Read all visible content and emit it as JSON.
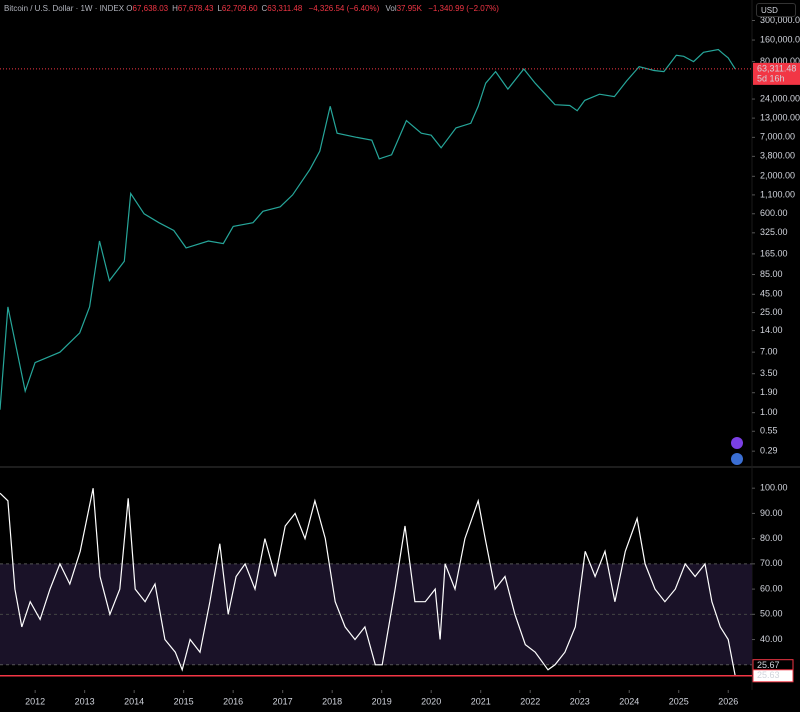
{
  "header": {
    "symbol": "Bitcoin / U.S. Dollar · 1W · INDEX",
    "ohlc": [
      {
        "key": "O",
        "value": "67,638.03"
      },
      {
        "key": "H",
        "value": "67,678.43"
      },
      {
        "key": "L",
        "value": "62,709.60"
      },
      {
        "key": "C",
        "value": "63,311.48"
      }
    ],
    "change": "−4,326.54 (−6.40%)",
    "volume_key": "Vol",
    "volume": "37.95K",
    "volume_change": "−1,340.99 (−2.07%)",
    "currency": "USD"
  },
  "chart_data": [
    {
      "type": "line",
      "log_scale": true,
      "color": "#26a69a",
      "x": [
        2011.29,
        2011.45,
        2011.8,
        2012.0,
        2012.5,
        2012.9,
        2013.1,
        2013.3,
        2013.5,
        2013.8,
        2013.93,
        2014.2,
        2014.5,
        2014.8,
        2015.05,
        2015.5,
        2015.8,
        2016.0,
        2016.4,
        2016.6,
        2016.95,
        2017.2,
        2017.55,
        2017.75,
        2017.96,
        2018.1,
        2018.5,
        2018.8,
        2018.95,
        2019.2,
        2019.5,
        2019.8,
        2020.0,
        2020.2,
        2020.5,
        2020.8,
        2020.95,
        2021.1,
        2021.3,
        2021.55,
        2021.87,
        2022.1,
        2022.5,
        2022.8,
        2022.95,
        2023.1,
        2023.4,
        2023.7,
        2023.95,
        2024.2,
        2024.5,
        2024.7,
        2024.95,
        2025.1,
        2025.3,
        2025.5,
        2025.8,
        2025.88,
        2026.0,
        2026.14
      ],
      "values": [
        1.1,
        30,
        2,
        5,
        7,
        13,
        30,
        250,
        70,
        130,
        1150,
        600,
        450,
        350,
        200,
        250,
        230,
        400,
        450,
        650,
        750,
        1100,
        2500,
        4500,
        19000,
        8000,
        7000,
        6400,
        3500,
        4000,
        12000,
        8000,
        7500,
        5000,
        9500,
        11000,
        19000,
        40000,
        58000,
        33000,
        63000,
        40000,
        20000,
        19500,
        16500,
        23000,
        28000,
        26000,
        43000,
        68000,
        60000,
        58000,
        98000,
        95000,
        80000,
        108000,
        118000,
        105000,
        90000,
        63311.48
      ],
      "xlim": [
        2011.29,
        2026.48
      ],
      "ylim": [
        0.18,
        580000
      ],
      "yticks": [
        {
          "value": 300000,
          "label": "300,000.00"
        },
        {
          "value": 160000,
          "label": "160,000.00"
        },
        {
          "value": 80000,
          "label": "80,000.00"
        },
        {
          "value": 24000,
          "label": "24,000.00"
        },
        {
          "value": 13000,
          "label": "13,000.00"
        },
        {
          "value": 7000,
          "label": "7,000.00"
        },
        {
          "value": 3800,
          "label": "3,800.00"
        },
        {
          "value": 2000,
          "label": "2,000.00"
        },
        {
          "value": 1100,
          "label": "1,100.00"
        },
        {
          "value": 600,
          "label": "600.00"
        },
        {
          "value": 325,
          "label": "325.00"
        },
        {
          "value": 165,
          "label": "165.00"
        },
        {
          "value": 85,
          "label": "85.00"
        },
        {
          "value": 45,
          "label": "45.00"
        },
        {
          "value": 25,
          "label": "25.00"
        },
        {
          "value": 14,
          "label": "14.00"
        },
        {
          "value": 7,
          "label": "7.00"
        },
        {
          "value": 3.5,
          "label": "3.50"
        },
        {
          "value": 1.9,
          "label": "1.90"
        },
        {
          "value": 1,
          "label": "1.00"
        },
        {
          "value": 0.55,
          "label": "0.55"
        },
        {
          "value": 0.29,
          "label": "0.29"
        }
      ],
      "last_price": {
        "value": 63311.48,
        "label": "63,311.48"
      },
      "countdown": "5d 16h"
    },
    {
      "type": "line",
      "color": "#ffffff",
      "x": [
        2011.29,
        2011.45,
        2011.59,
        2011.73,
        2011.9,
        2012.1,
        2012.3,
        2012.5,
        2012.7,
        2012.91,
        2013.17,
        2013.31,
        2013.51,
        2013.71,
        2013.88,
        2014.02,
        2014.22,
        2014.42,
        2014.62,
        2014.83,
        2014.97,
        2015.13,
        2015.33,
        2015.53,
        2015.73,
        2015.9,
        2016.06,
        2016.24,
        2016.44,
        2016.64,
        2016.85,
        2017.05,
        2017.25,
        2017.45,
        2017.65,
        2017.86,
        2018.06,
        2018.26,
        2018.46,
        2018.66,
        2018.87,
        2019.01,
        2019.27,
        2019.47,
        2019.67,
        2019.88,
        2020.08,
        2020.18,
        2020.28,
        2020.48,
        2020.68,
        2020.95,
        2021.09,
        2021.29,
        2021.49,
        2021.69,
        2021.9,
        2022.1,
        2022.36,
        2022.5,
        2022.7,
        2022.91,
        2023.11,
        2023.31,
        2023.51,
        2023.71,
        2023.92,
        2024.16,
        2024.32,
        2024.52,
        2024.72,
        2024.93,
        2025.13,
        2025.33,
        2025.53,
        2025.67,
        2025.84,
        2026.0,
        2026.14
      ],
      "values": [
        98,
        95,
        60,
        45,
        55,
        48,
        60,
        70,
        62,
        75,
        100,
        65,
        50,
        60,
        96,
        60,
        55,
        62,
        40,
        35,
        28,
        40,
        35,
        55,
        78,
        50,
        65,
        70,
        60,
        80,
        65,
        85,
        90,
        80,
        95,
        80,
        55,
        45,
        40,
        45,
        30,
        30,
        60,
        85,
        55,
        55,
        60,
        40,
        70,
        60,
        80,
        95,
        80,
        60,
        65,
        50,
        38,
        35,
        28,
        30,
        35,
        45,
        75,
        65,
        75,
        55,
        75,
        88,
        70,
        60,
        55,
        60,
        70,
        65,
        70,
        55,
        45,
        40,
        25.63
      ],
      "xlim": [
        2011.29,
        2026.48
      ],
      "ylim": [
        20,
        108
      ],
      "yticks": [
        {
          "value": 100,
          "label": "100.00"
        },
        {
          "value": 90,
          "label": "90.00"
        },
        {
          "value": 80,
          "label": "80.00"
        },
        {
          "value": 70,
          "label": "70.00"
        },
        {
          "value": 60,
          "label": "60.00"
        },
        {
          "value": 50,
          "label": "50.00"
        },
        {
          "value": 40,
          "label": "40.00"
        }
      ],
      "xticks": [
        2012,
        2013,
        2014,
        2015,
        2016,
        2017,
        2018,
        2019,
        2020,
        2021,
        2022,
        2023,
        2024,
        2025,
        2026
      ],
      "band": [
        30,
        70
      ],
      "midline": 50,
      "markers": [
        {
          "value": 25.67,
          "label": "25.67"
        },
        {
          "value": 25.63,
          "label": "25.63"
        }
      ]
    }
  ]
}
